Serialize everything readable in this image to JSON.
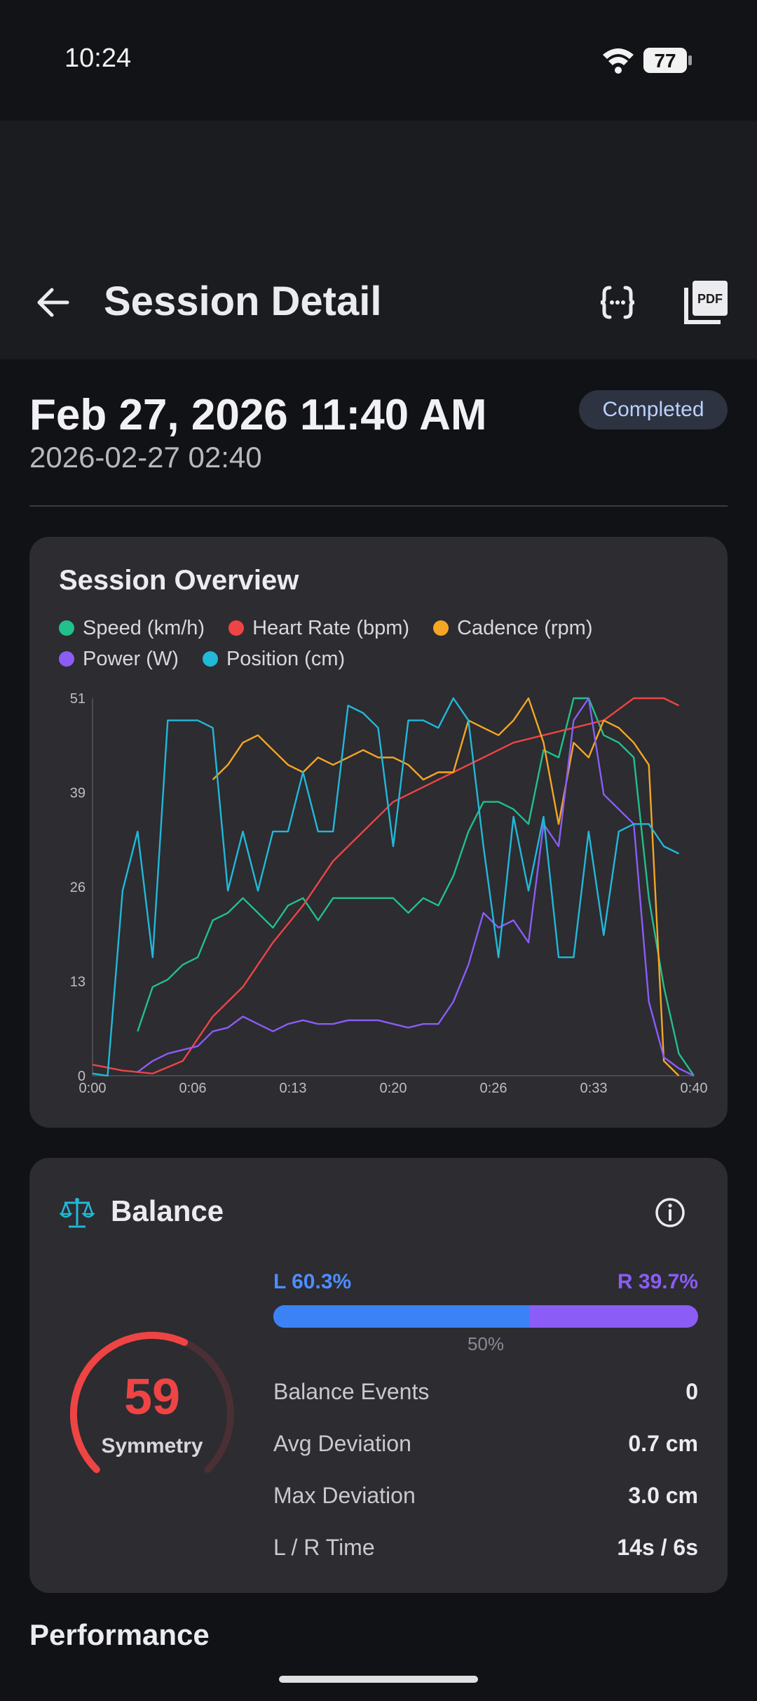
{
  "status": {
    "time": "10:24",
    "battery": "77"
  },
  "appbar": {
    "title": "Session Detail",
    "icons": {
      "back": "arrow-left-icon",
      "json": "code-braces-icon",
      "pdf": "pdf-file-icon"
    }
  },
  "session": {
    "date": "Feb 27, 2026 11:40 AM",
    "timestamp": "2026-02-27 02:40",
    "status": "Completed"
  },
  "overview": {
    "title": "Session Overview",
    "legend": [
      {
        "label": "Speed (km/h)",
        "color": "#22c08a"
      },
      {
        "label": "Heart Rate (bpm)",
        "color": "#ef4444"
      },
      {
        "label": "Cadence (rpm)",
        "color": "#f5a623"
      },
      {
        "label": "Power (W)",
        "color": "#8b5cf6"
      },
      {
        "label": "Position (cm)",
        "color": "#22b8d8"
      }
    ]
  },
  "chart_data": {
    "type": "line",
    "title": "Session Overview",
    "x_ticks": [
      "0:00",
      "0:06",
      "0:13",
      "0:20",
      "0:26",
      "0:33",
      "0:40"
    ],
    "y_ticks": [
      "0",
      "13",
      "26",
      "39",
      "51"
    ],
    "ylim": [
      0,
      51
    ],
    "xlim": [
      0,
      40
    ],
    "legend_position": "top",
    "grid": false,
    "series": [
      {
        "name": "Speed (km/h)",
        "color": "#22c08a",
        "points": [
          [
            3,
            6
          ],
          [
            4,
            12
          ],
          [
            5,
            13
          ],
          [
            6,
            15
          ],
          [
            7,
            16
          ],
          [
            8,
            21
          ],
          [
            9,
            22
          ],
          [
            10,
            24
          ],
          [
            11,
            22
          ],
          [
            12,
            20
          ],
          [
            13,
            23
          ],
          [
            14,
            24
          ],
          [
            15,
            21
          ],
          [
            16,
            24
          ],
          [
            17,
            24
          ],
          [
            18,
            24
          ],
          [
            19,
            24
          ],
          [
            20,
            24
          ],
          [
            21,
            22
          ],
          [
            22,
            24
          ],
          [
            23,
            23
          ],
          [
            24,
            27
          ],
          [
            25,
            33
          ],
          [
            26,
            37
          ],
          [
            27,
            37
          ],
          [
            28,
            36
          ],
          [
            29,
            34
          ],
          [
            30,
            44
          ],
          [
            31,
            43
          ],
          [
            32,
            51
          ],
          [
            33,
            51
          ],
          [
            34,
            46
          ],
          [
            35,
            45
          ],
          [
            36,
            43
          ],
          [
            37,
            24
          ],
          [
            38,
            12
          ],
          [
            39,
            3
          ],
          [
            40,
            0
          ]
        ]
      },
      {
        "name": "Heart Rate (bpm)",
        "color": "#ef4444",
        "points": [
          [
            0,
            1.5
          ],
          [
            2,
            0.7
          ],
          [
            4,
            0.3
          ],
          [
            6,
            2
          ],
          [
            8,
            8
          ],
          [
            10,
            12
          ],
          [
            12,
            18
          ],
          [
            14,
            23
          ],
          [
            16,
            29
          ],
          [
            18,
            33
          ],
          [
            20,
            37
          ],
          [
            22,
            39
          ],
          [
            24,
            41
          ],
          [
            26,
            43
          ],
          [
            28,
            45
          ],
          [
            30,
            46
          ],
          [
            32,
            47
          ],
          [
            34,
            48
          ],
          [
            36,
            51
          ],
          [
            38,
            51
          ],
          [
            39,
            50
          ]
        ]
      },
      {
        "name": "Cadence (rpm)",
        "color": "#f5a623",
        "points": [
          [
            8,
            40
          ],
          [
            9,
            42
          ],
          [
            10,
            45
          ],
          [
            11,
            46
          ],
          [
            12,
            44
          ],
          [
            13,
            42
          ],
          [
            14,
            41
          ],
          [
            15,
            43
          ],
          [
            16,
            42
          ],
          [
            17,
            43
          ],
          [
            18,
            44
          ],
          [
            19,
            43
          ],
          [
            20,
            43
          ],
          [
            21,
            42
          ],
          [
            22,
            40
          ],
          [
            23,
            41
          ],
          [
            24,
            41
          ],
          [
            25,
            48
          ],
          [
            26,
            47
          ],
          [
            27,
            46
          ],
          [
            28,
            48
          ],
          [
            29,
            51
          ],
          [
            30,
            45
          ],
          [
            31,
            34
          ],
          [
            32,
            45
          ],
          [
            33,
            43
          ],
          [
            34,
            48
          ],
          [
            35,
            47
          ],
          [
            36,
            45
          ],
          [
            37,
            42
          ],
          [
            38,
            2
          ],
          [
            39,
            0
          ]
        ]
      },
      {
        "name": "Power (W)",
        "color": "#8b5cf6",
        "points": [
          [
            3,
            0.5
          ],
          [
            4,
            2
          ],
          [
            5,
            3
          ],
          [
            6,
            3.5
          ],
          [
            7,
            4
          ],
          [
            8,
            6
          ],
          [
            9,
            6.5
          ],
          [
            10,
            8
          ],
          [
            11,
            7
          ],
          [
            12,
            6
          ],
          [
            13,
            7
          ],
          [
            14,
            7.5
          ],
          [
            15,
            7
          ],
          [
            16,
            7
          ],
          [
            17,
            7.5
          ],
          [
            18,
            7.5
          ],
          [
            19,
            7.5
          ],
          [
            20,
            7
          ],
          [
            21,
            6.5
          ],
          [
            22,
            7
          ],
          [
            23,
            7
          ],
          [
            24,
            10
          ],
          [
            25,
            15
          ],
          [
            26,
            22
          ],
          [
            27,
            20
          ],
          [
            28,
            21
          ],
          [
            29,
            18
          ],
          [
            30,
            34
          ],
          [
            31,
            31
          ],
          [
            32,
            48
          ],
          [
            33,
            51
          ],
          [
            34,
            38
          ],
          [
            35,
            36
          ],
          [
            36,
            34
          ],
          [
            37,
            10
          ],
          [
            38,
            2.5
          ],
          [
            39,
            1
          ],
          [
            40,
            0
          ]
        ]
      },
      {
        "name": "Position (cm)",
        "color": "#22b8d8",
        "points": [
          [
            0,
            0.3
          ],
          [
            1,
            0
          ],
          [
            2,
            25
          ],
          [
            3,
            33
          ],
          [
            4,
            16
          ],
          [
            5,
            48
          ],
          [
            6,
            48
          ],
          [
            7,
            48
          ],
          [
            8,
            47
          ],
          [
            9,
            25
          ],
          [
            10,
            33
          ],
          [
            11,
            25
          ],
          [
            12,
            33
          ],
          [
            13,
            33
          ],
          [
            14,
            41
          ],
          [
            15,
            33
          ],
          [
            16,
            33
          ],
          [
            17,
            50
          ],
          [
            18,
            49
          ],
          [
            19,
            47
          ],
          [
            20,
            31
          ],
          [
            21,
            48
          ],
          [
            22,
            48
          ],
          [
            23,
            47
          ],
          [
            24,
            51
          ],
          [
            25,
            48
          ],
          [
            26,
            31
          ],
          [
            27,
            16
          ],
          [
            28,
            35
          ],
          [
            29,
            25
          ],
          [
            30,
            35
          ],
          [
            31,
            16
          ],
          [
            32,
            16
          ],
          [
            33,
            33
          ],
          [
            34,
            19
          ],
          [
            35,
            33
          ],
          [
            36,
            34
          ],
          [
            37,
            34
          ],
          [
            38,
            31
          ],
          [
            39,
            30
          ]
        ]
      }
    ]
  },
  "balance": {
    "title": "Balance",
    "icons": {
      "header": "scale-balance-icon",
      "info": "info-circle-icon"
    },
    "symmetry_value": "59",
    "symmetry_label": "Symmetry",
    "symmetry_fraction": 0.59,
    "left_label": "L 60.3%",
    "right_label": "R 39.7%",
    "left_fraction": 0.603,
    "mid_label": "50%",
    "stats": [
      {
        "label": "Balance Events",
        "value": "0"
      },
      {
        "label": "Avg Deviation",
        "value": "0.7 cm"
      },
      {
        "label": "Max Deviation",
        "value": "3.0 cm"
      },
      {
        "label": "L / R Time",
        "value": "14s / 6s"
      }
    ]
  },
  "performance": {
    "title": "Performance"
  }
}
